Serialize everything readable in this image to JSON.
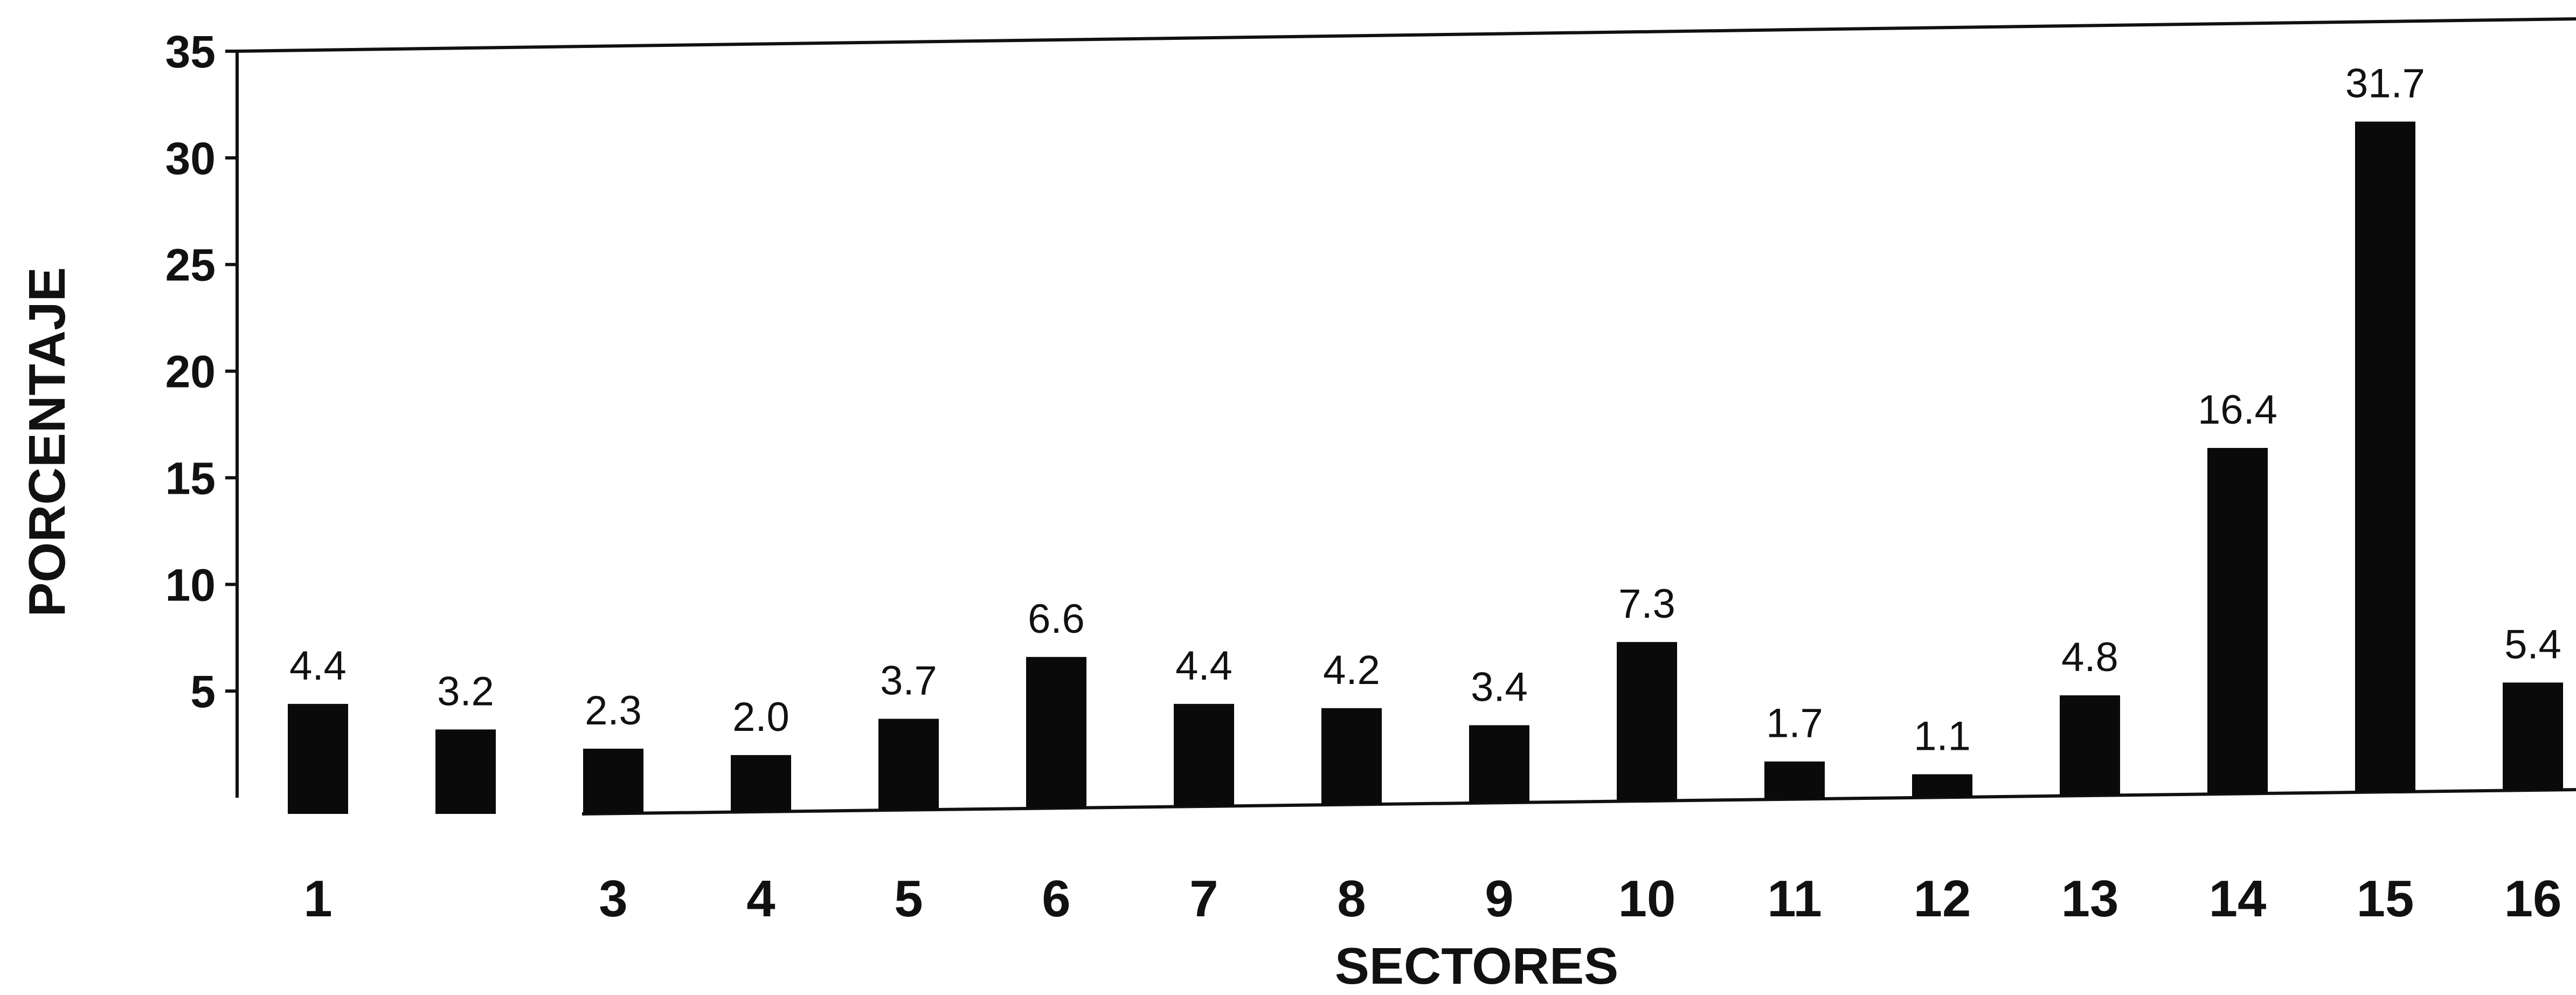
{
  "chart_data": {
    "type": "bar",
    "title": "",
    "xlabel": "SECTORES",
    "ylabel": "PORCENTAJE",
    "ylim": [
      0,
      35
    ],
    "yticks": [
      5,
      10,
      15,
      20,
      25,
      30,
      35
    ],
    "grid": false,
    "categories": [
      "1",
      "",
      "3",
      "4",
      "5",
      "6",
      "7",
      "8",
      "9",
      "10",
      "11",
      "12",
      "13",
      "14",
      "15",
      "16"
    ],
    "values": [
      4.4,
      3.2,
      2.3,
      2.0,
      3.7,
      6.6,
      4.4,
      4.2,
      3.4,
      7.3,
      1.7,
      1.1,
      4.8,
      16.4,
      31.7,
      5.4
    ],
    "value_labels": [
      "4.4",
      "3.2",
      "2.3",
      "2.0",
      "3.7",
      "6.6",
      "4.4",
      "4.2",
      "3.4",
      "7.3",
      "1.7",
      "1.1",
      "4.8",
      "16.4",
      "31.7",
      "5.4"
    ],
    "bar_color": "#0a0a0a"
  }
}
